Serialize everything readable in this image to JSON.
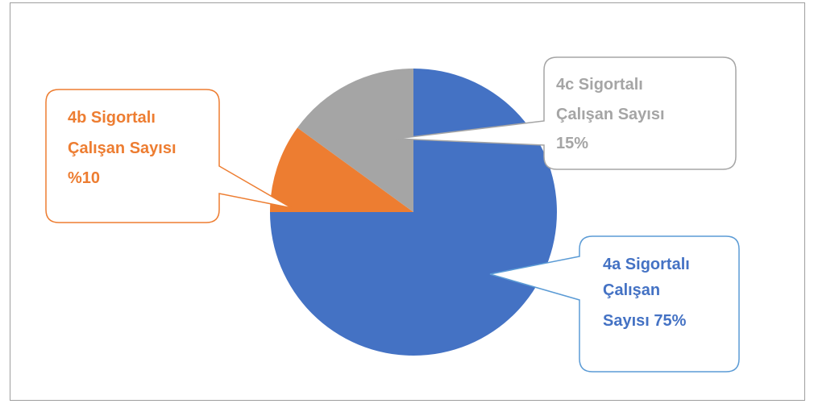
{
  "chart_data": {
    "type": "pie",
    "slices": [
      {
        "label": "4a Sigortalı Çalışan Sayısı",
        "value": 75,
        "color": "#4472C4"
      },
      {
        "label": "4b Sigortalı Çalışan Sayısı",
        "value": 10,
        "color": "#ED7D31"
      },
      {
        "label": "4c Sigortalı Çalışan Sayısı",
        "value": 15,
        "color": "#A5A5A5"
      }
    ],
    "data_labels": [
      {
        "lines": [
          "4a Sigortalı",
          "Çalışan",
          "Sayısı 75%"
        ],
        "color": "#4472C4",
        "border": "#5B9BD5"
      },
      {
        "lines": [
          "4b Sigortalı",
          "Çalışan Sayısı",
          "%10"
        ],
        "color": "#ED7D31",
        "border": "#ED7D31"
      },
      {
        "lines": [
          "4c Sigortalı",
          "Çalışan Sayısı",
          "15%"
        ],
        "color": "#A5A5A5",
        "border": "#A5A5A5"
      }
    ]
  }
}
